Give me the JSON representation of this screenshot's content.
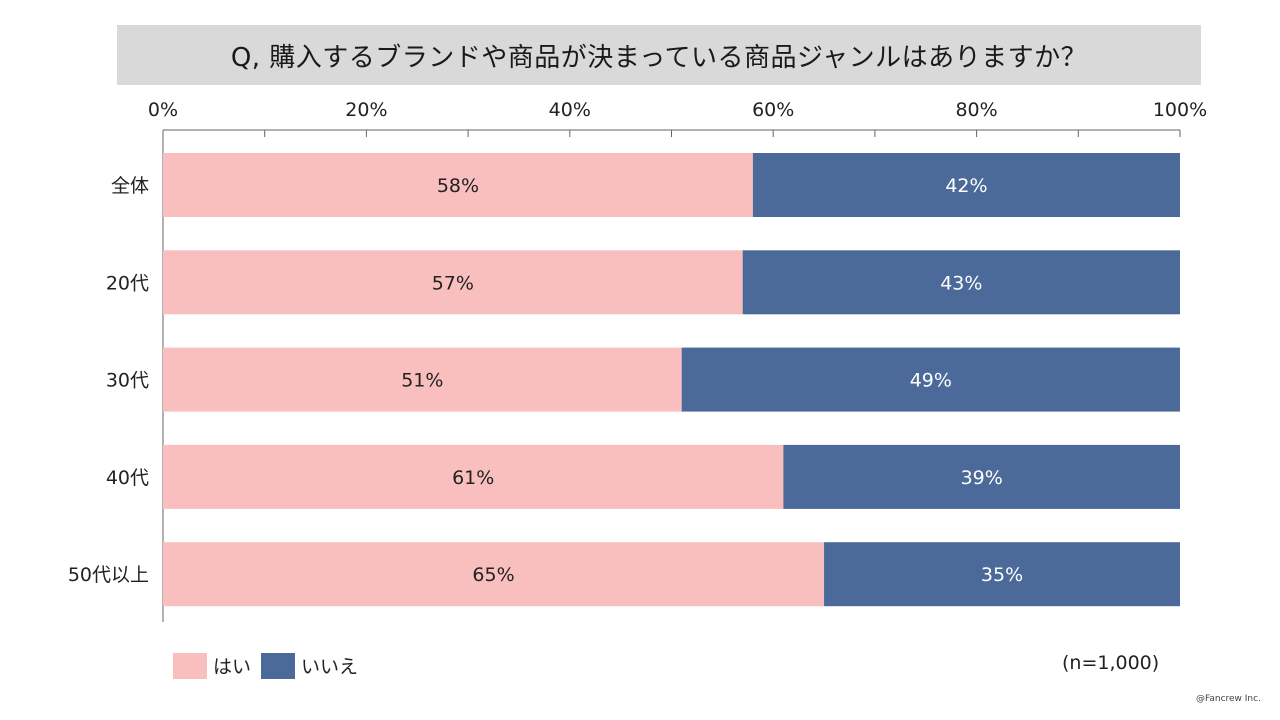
{
  "title": "Q, 購入するブランドや商品が決まっている商品ジャンルはありますか？",
  "sample_note": "(n=1,000)",
  "credit": "@Fancrew Inc.",
  "colors": {
    "yes": "#f9bfbf",
    "no": "#4b6a99"
  },
  "chart_data": {
    "type": "bar",
    "orientation": "horizontal",
    "stacked": true,
    "percent_stacked": true,
    "categories": [
      "全体",
      "20代",
      "30代",
      "40代",
      "50代以上"
    ],
    "series": [
      {
        "name": "はい",
        "values": [
          58,
          57,
          51,
          61,
          65
        ]
      },
      {
        "name": "いいえ",
        "values": [
          42,
          43,
          49,
          39,
          35
        ]
      }
    ],
    "data_labels": [
      [
        "58%",
        "57%",
        "51%",
        "61%",
        "65%"
      ],
      [
        "42%",
        "43%",
        "49%",
        "39%",
        "35%"
      ]
    ],
    "xlim": [
      0,
      100
    ],
    "x_tick_labels": [
      "0%",
      "20%",
      "40%",
      "60%",
      "80%",
      "100%"
    ],
    "x_axis_position": "top",
    "legend_position": "bottom-left",
    "grid": false
  }
}
